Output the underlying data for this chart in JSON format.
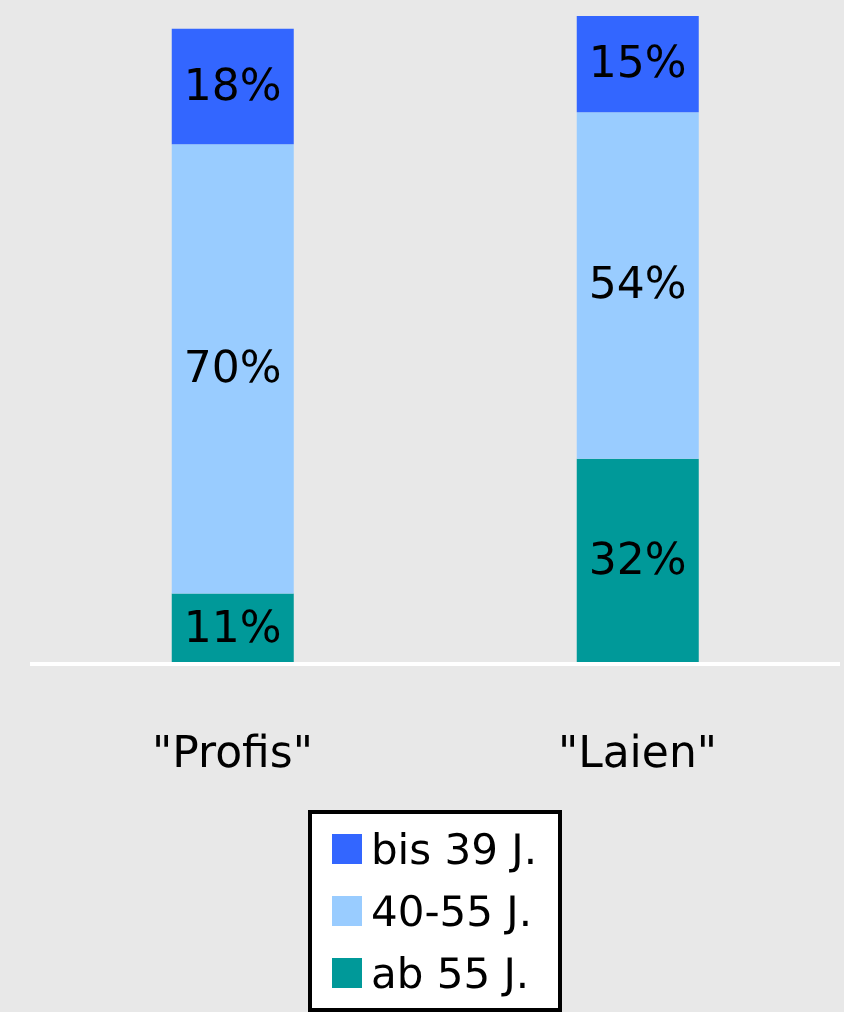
{
  "chart_data": {
    "type": "bar",
    "stacked": true,
    "categories": [
      "\"Profis\"",
      "\"Laien\""
    ],
    "series": [
      {
        "name": "ab 55 J.",
        "color": "#009999",
        "values": [
          11,
          32
        ],
        "value_labels": [
          "11%",
          "32%"
        ]
      },
      {
        "name": "40-55 J.",
        "color": "#99ccff",
        "values": [
          70,
          54
        ],
        "value_labels": [
          "70%",
          "54%"
        ]
      },
      {
        "name": "bis 39 J.",
        "color": "#3366ff",
        "values": [
          18,
          15
        ],
        "value_labels": [
          "18%",
          "15%"
        ]
      }
    ],
    "legend": "bottom"
  }
}
